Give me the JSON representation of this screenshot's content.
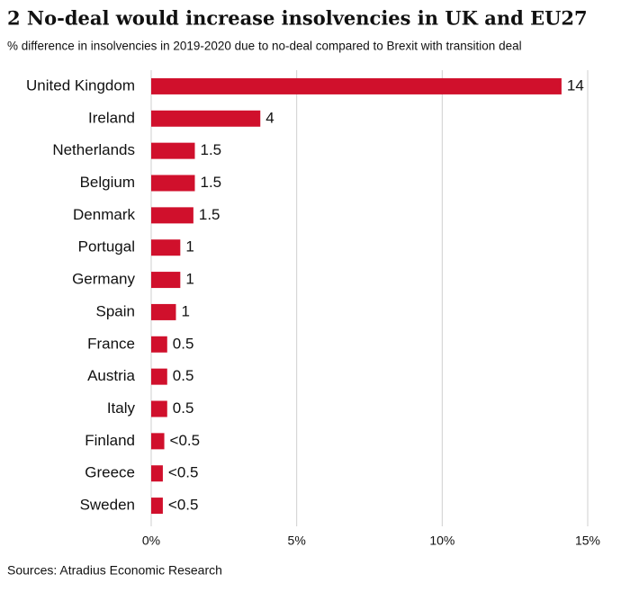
{
  "chart_data": {
    "type": "hbar",
    "title": "2 No-deal would increase insolvencies in UK and EU27",
    "subtitle": "% difference in insolvencies  in 2019-2020  due to no-deal compared  to Brexit with transition deal",
    "categories": [
      "United Kingdom",
      "Ireland",
      "Netherlands",
      "Belgium",
      "Denmark",
      "Portugal",
      "Germany",
      "Spain",
      "France",
      "Austria",
      "Italy",
      "Finland",
      "Greece",
      "Sweden"
    ],
    "values": [
      14.1,
      3.75,
      1.5,
      1.5,
      1.45,
      1,
      1,
      0.85,
      0.55,
      0.55,
      0.55,
      0.45,
      0.4,
      0.4
    ],
    "value_labels": [
      "14",
      "4",
      "1.5",
      "1.5",
      "1.5",
      "1",
      "1",
      "1",
      "0.5",
      "0.5",
      "0.5",
      "<0.5",
      "<0.5",
      "<0.5"
    ],
    "color": "#d0102c",
    "xlim": [
      0,
      15
    ],
    "xticks": [
      {
        "value": 0,
        "label": "0%"
      },
      {
        "value": 5,
        "label": "5%"
      },
      {
        "value": 10,
        "label": "10%"
      },
      {
        "value": 15,
        "label": "15%"
      }
    ],
    "grid": true,
    "source": "Sources: Atradius Economic Research"
  }
}
